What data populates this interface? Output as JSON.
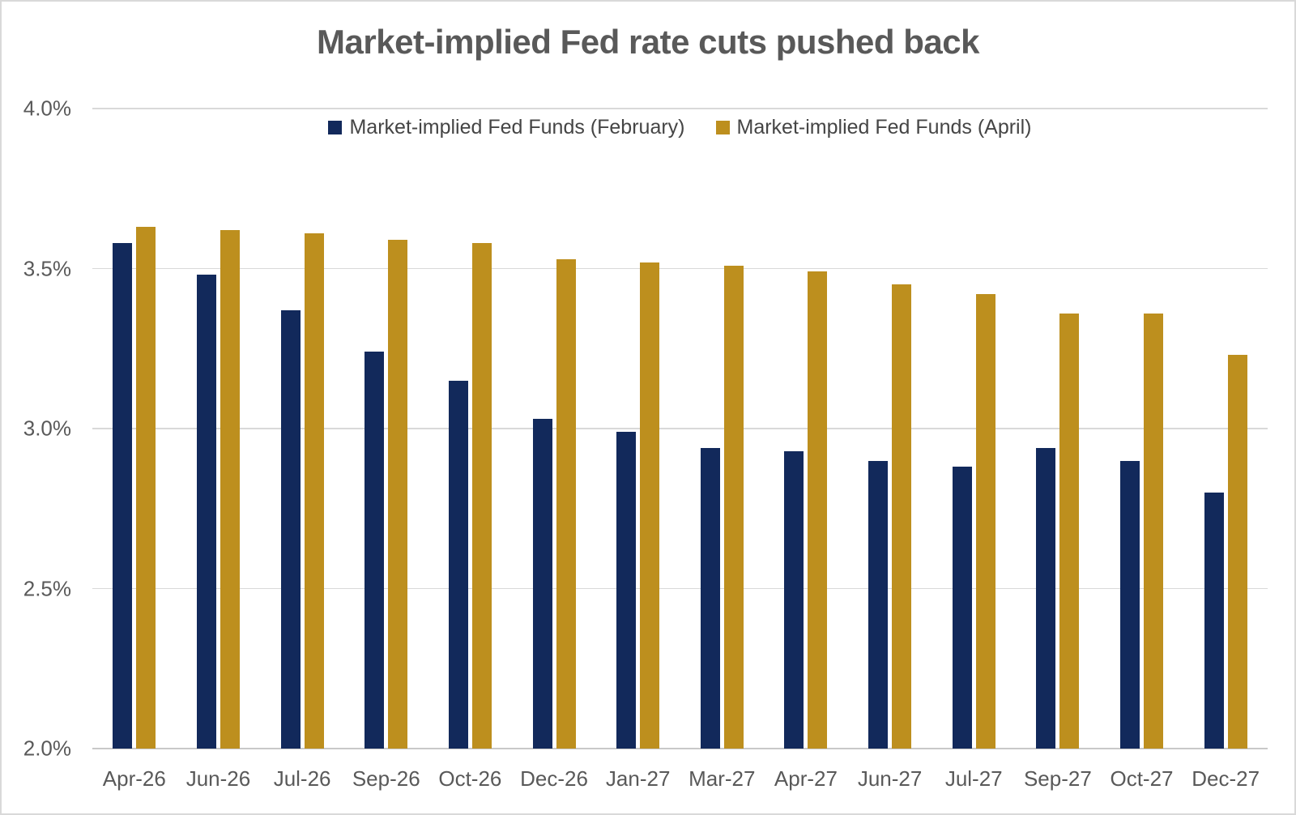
{
  "title": "Market-implied Fed rate cuts pushed back",
  "colors": {
    "february_bar": "#12295B",
    "april_bar": "#BD8F1E",
    "title_text": "#595959",
    "axis_text": "#595959",
    "legend_text": "#454545",
    "gridline": "#D9D9D9",
    "axis_baseline": "#C9C9C9",
    "border": "#D9D9D9",
    "background": "#FFFFFF"
  },
  "chart_data": {
    "type": "bar",
    "title": "Market-implied Fed rate cuts pushed back",
    "xlabel": "",
    "ylabel": "",
    "ylim": [
      2.0,
      4.0
    ],
    "grid": true,
    "legend_position": "top-center",
    "value_suffix": "%",
    "categories": [
      "Apr-26",
      "Jun-26",
      "Jul-26",
      "Sep-26",
      "Oct-26",
      "Dec-26",
      "Jan-27",
      "Mar-27",
      "Apr-27",
      "Jun-27",
      "Jul-27",
      "Sep-27",
      "Oct-27",
      "Dec-27"
    ],
    "yticks": [
      {
        "value": 4.0,
        "label": "4.0%"
      },
      {
        "value": 3.5,
        "label": "3.5%"
      },
      {
        "value": 3.0,
        "label": "3.0%"
      },
      {
        "value": 2.5,
        "label": "2.5%"
      },
      {
        "value": 2.0,
        "label": "2.0%"
      }
    ],
    "series": [
      {
        "name": "Market-implied Fed Funds (February)",
        "color": "#12295B",
        "values": [
          3.58,
          3.48,
          3.37,
          3.24,
          3.15,
          3.03,
          2.99,
          2.94,
          2.93,
          2.9,
          2.88,
          2.94,
          2.9,
          2.8
        ]
      },
      {
        "name": "Market-implied Fed Funds (April)",
        "color": "#BD8F1E",
        "values": [
          3.63,
          3.62,
          3.61,
          3.59,
          3.58,
          3.53,
          3.52,
          3.51,
          3.49,
          3.45,
          3.42,
          3.36,
          3.36,
          3.23
        ]
      }
    ]
  }
}
